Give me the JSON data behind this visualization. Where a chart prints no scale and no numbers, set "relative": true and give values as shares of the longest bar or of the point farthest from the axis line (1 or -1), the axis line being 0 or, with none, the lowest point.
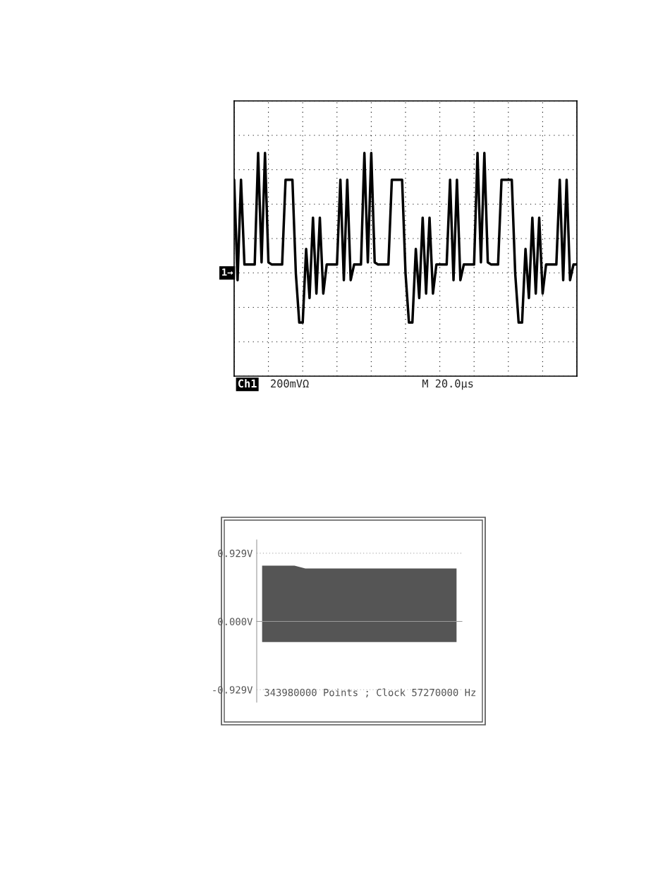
{
  "chart_data": [
    {
      "type": "line",
      "relative": true,
      "grid": true,
      "legend": false,
      "categories": [
        null,
        null,
        null,
        null,
        null,
        null,
        null,
        null,
        null,
        null,
        null,
        null,
        null,
        null,
        null,
        null,
        null,
        null,
        null,
        null,
        null,
        null,
        null,
        null,
        null,
        null,
        null,
        null,
        null,
        null,
        null,
        null,
        null,
        null,
        null,
        null,
        null,
        null,
        null,
        null,
        null,
        null,
        null,
        null,
        null,
        null,
        null,
        null,
        null,
        null,
        null,
        null,
        null,
        null,
        null,
        null,
        null,
        null,
        null,
        null,
        null,
        null,
        null,
        null,
        null,
        null,
        null,
        null,
        null,
        null,
        null,
        null,
        null,
        null,
        null,
        null,
        null,
        null,
        null,
        null,
        null,
        null,
        null,
        null,
        null,
        null,
        null,
        null,
        null,
        null,
        null,
        null,
        null,
        null,
        null,
        null,
        null,
        null,
        null,
        null,
        null
      ],
      "annotations": [
        "1→",
        "Ch1",
        "200mVΩ",
        "M 20.0µs"
      ],
      "series": [
        {
          "color": "#000000",
          "values": [
            0.88,
            0.43,
            0.88,
            0.5,
            0.5,
            0.5,
            0.5,
            1,
            0.51,
            1,
            0.51,
            0.5,
            0.5,
            0.5,
            0.5,
            0.88,
            0.88,
            0.88,
            0.46,
            0.24,
            0.24,
            0.57,
            0.35,
            0.71,
            0.37,
            0.71,
            0.37,
            0.5,
            0.5,
            0.5,
            0.5,
            0.88,
            0.43,
            0.88,
            0.43,
            0.5,
            0.5,
            0.5,
            1,
            0.51,
            1,
            0.51,
            0.5,
            0.5,
            0.5,
            0.5,
            0.88,
            0.88,
            0.88,
            0.88,
            0.46,
            0.24,
            0.24,
            0.57,
            0.35,
            0.71,
            0.37,
            0.71,
            0.37,
            0.5,
            0.5,
            0.5,
            0.5,
            0.88,
            0.43,
            0.88,
            0.43,
            0.5,
            0.5,
            0.5,
            0.5,
            1,
            0.51,
            1,
            0.51,
            0.5,
            0.5,
            0.5,
            0.88,
            0.88,
            0.88,
            0.88,
            0.46,
            0.24,
            0.24,
            0.57,
            0.35,
            0.71,
            0.37,
            0.71,
            0.37,
            0.5,
            0.5,
            0.5,
            0.5,
            0.88,
            0.43,
            0.88,
            0.43,
            0.5,
            0.5
          ]
        }
      ]
    },
    {
      "type": "area",
      "grid": "y",
      "tick_labels": "y",
      "legend": false,
      "ylim": [
        -1.1,
        1.11
      ],
      "yticks": [
        {
          "value": 0.929,
          "label": "0.929V"
        },
        {
          "value": 0,
          "label": "0.000V"
        },
        {
          "value": -0.929,
          "label": "-0.929V"
        }
      ],
      "categories": [
        null,
        null,
        null,
        null,
        null,
        null,
        null,
        null,
        null,
        null,
        null,
        null,
        null,
        null,
        null,
        null,
        null,
        null,
        null
      ],
      "annotations": [
        "343980000 Points ; Clock 57270000 Hz"
      ],
      "series": [
        {
          "color": "#555555",
          "values": [
            0.76,
            0.76,
            0.76,
            0.76,
            0.72,
            0.72,
            0.72,
            0.72,
            0.72,
            0.72,
            0.72,
            0.72,
            0.72,
            0.72,
            0.72,
            0.72,
            0.72,
            0.72,
            0.72
          ]
        },
        {
          "color": "#555555",
          "values": [
            -0.28,
            -0.28,
            -0.28,
            -0.28,
            -0.28,
            -0.28,
            -0.28,
            -0.28,
            -0.28,
            -0.28,
            -0.28,
            -0.28,
            -0.28,
            -0.28,
            -0.28,
            -0.28,
            -0.28,
            -0.28,
            -0.28
          ]
        }
      ]
    }
  ]
}
